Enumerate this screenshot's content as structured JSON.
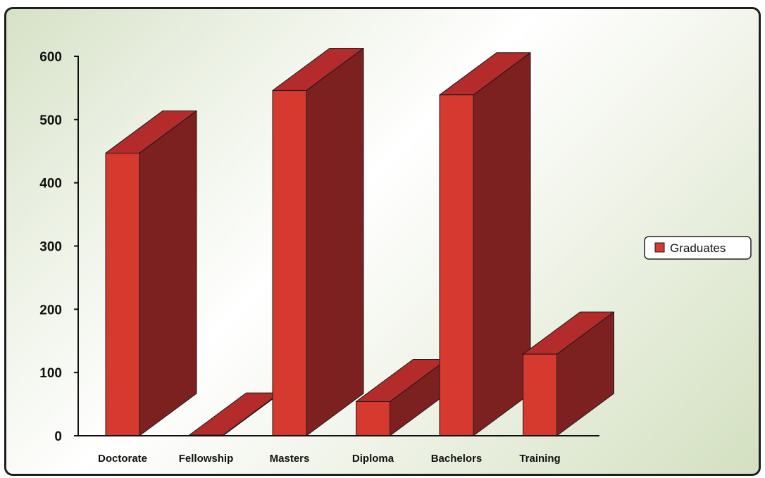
{
  "chart_data": {
    "type": "bar",
    "title": "",
    "xlabel": "",
    "ylabel": "",
    "categories": [
      "Doctorate",
      "Fellowship",
      "Masters",
      "Diploma",
      "Bachelors",
      "Training"
    ],
    "series": [
      {
        "name": "Graduates",
        "values": [
          447,
          1,
          546,
          54,
          539,
          129
        ]
      }
    ],
    "ylim": [
      0,
      600
    ],
    "yticks": [
      0,
      100,
      200,
      300,
      400,
      500,
      600
    ],
    "ytick_labels": [
      "0",
      "100",
      "200",
      "300",
      "400",
      "500",
      "600"
    ],
    "grid": false,
    "legend": "right",
    "style": "3d-bars",
    "colors": {
      "front": "#d63a2e",
      "side": "#7c2020",
      "top": "#b32b2b",
      "outline": "#1a1a1a"
    }
  }
}
